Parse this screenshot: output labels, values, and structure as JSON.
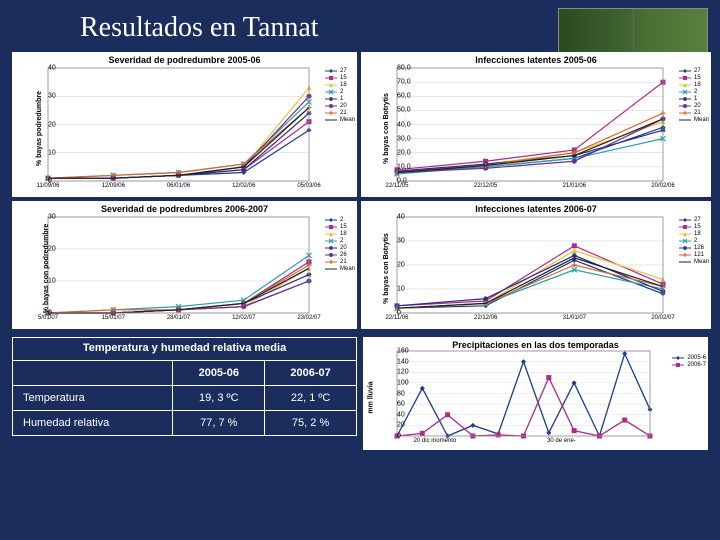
{
  "title": "Resultados en Tannat",
  "charts": {
    "sev0506": {
      "title": "Severidad de podredumbre 2005-06",
      "ylabel": "% bayas podredumbre",
      "ylim": [
        0,
        40
      ],
      "ytick": 10,
      "xticks": [
        "11/09/06",
        "12/09/06",
        "06/01/06",
        "12/02/06",
        "05/03/06"
      ],
      "legend": [
        "27",
        "15",
        "18",
        "2",
        "1",
        "20",
        "21",
        "Mean"
      ],
      "colors": [
        "#1a3c8c",
        "#b02a8a",
        "#e8c040",
        "#2aa0b0",
        "#2a2a80",
        "#6a3090",
        "#d06a30",
        "#202020"
      ],
      "markers": [
        "diamond",
        "square",
        "triangle",
        "cross",
        "star",
        "circle",
        "plus",
        "line"
      ],
      "series": [
        [
          1,
          1,
          2,
          3,
          18
        ],
        [
          1,
          1,
          2,
          4,
          21
        ],
        [
          1,
          1,
          2,
          5,
          33
        ],
        [
          1,
          2,
          3,
          6,
          28
        ],
        [
          1,
          1,
          2,
          4,
          24
        ],
        [
          1,
          1,
          2,
          5,
          30
        ],
        [
          1,
          2,
          3,
          6,
          26
        ],
        [
          1,
          1,
          2,
          5,
          26
        ]
      ]
    },
    "inf0506": {
      "title": "Infecciones latentes 2005-06",
      "ylabel": "% bayas con Botrytis",
      "ylim": [
        0,
        80
      ],
      "ytick": 10,
      "xticks": [
        "22/11/05",
        "22/12/05",
        "21/01/06",
        "20/02/06"
      ],
      "legend": [
        "27",
        "15",
        "18",
        "2",
        "1",
        "20",
        "21",
        "Mean"
      ],
      "colors": [
        "#1a3c8c",
        "#b02a8a",
        "#e8c040",
        "#2aa0b0",
        "#2a2a80",
        "#6a3090",
        "#d06a30",
        "#202020"
      ],
      "markers": [
        "diamond",
        "square",
        "triangle",
        "cross",
        "star",
        "circle",
        "plus",
        "line"
      ],
      "series": [
        [
          6,
          10,
          16,
          38
        ],
        [
          8,
          14,
          22,
          70
        ],
        [
          6,
          12,
          20,
          42
        ],
        [
          5,
          10,
          16,
          30
        ],
        [
          7,
          12,
          18,
          36
        ],
        [
          6,
          9,
          14,
          44
        ],
        [
          6,
          11,
          20,
          48
        ],
        [
          6,
          11,
          18,
          44
        ]
      ]
    },
    "sev0607": {
      "title": "Severidad de podredumbres 2006-2007",
      "ylabel": "% bayas con podredumbre",
      "ylim": [
        0,
        30
      ],
      "ytick": 10,
      "xticks": [
        "5/01/07",
        "15/01/07",
        "28/01/07",
        "12/02/07",
        "23/02/07"
      ],
      "legend": [
        "2",
        "15",
        "18",
        "2",
        "20",
        "26",
        "21",
        "Mean"
      ],
      "colors": [
        "#1a3c8c",
        "#b02a8a",
        "#e8c040",
        "#2aa0b0",
        "#2a2a80",
        "#6a3090",
        "#d06a30",
        "#202020"
      ],
      "markers": [
        "diamond",
        "square",
        "triangle",
        "cross",
        "star",
        "circle",
        "plus",
        "line"
      ],
      "series": [
        [
          0,
          0,
          1,
          2,
          10
        ],
        [
          0,
          0,
          1,
          3,
          16
        ],
        [
          0,
          0,
          1,
          2,
          14
        ],
        [
          0,
          1,
          2,
          4,
          18
        ],
        [
          0,
          0,
          1,
          3,
          12
        ],
        [
          0,
          0,
          1,
          2,
          10
        ],
        [
          0,
          1,
          1,
          3,
          15
        ],
        [
          0,
          0,
          1,
          3,
          14
        ]
      ]
    },
    "inf0607": {
      "title": "Infecciones latentes 2006-07",
      "ylabel": "% bayas con Botrytis",
      "ylim": [
        0,
        40
      ],
      "ytick": 10,
      "xticks": [
        "22/11/06",
        "22/12/06",
        "31/01/07",
        "20/02/07"
      ],
      "legend": [
        "27",
        "15",
        "18",
        "2",
        "126",
        "121",
        "Mean"
      ],
      "colors": [
        "#1a3c8c",
        "#b02a8a",
        "#e8c040",
        "#2aa0b0",
        "#2a2a80",
        "#d06a30",
        "#202020"
      ],
      "markers": [
        "diamond",
        "square",
        "triangle",
        "cross",
        "star",
        "plus",
        "line"
      ],
      "series": [
        [
          2,
          3,
          22,
          8
        ],
        [
          3,
          5,
          28,
          12
        ],
        [
          2,
          4,
          26,
          14
        ],
        [
          2,
          4,
          18,
          10
        ],
        [
          3,
          6,
          24,
          9
        ],
        [
          2,
          4,
          20,
          11
        ],
        [
          2,
          4,
          23,
          11
        ]
      ]
    },
    "precip": {
      "title": "Precipitaciones en las dos temporadas",
      "ylabel": "mm lluvia",
      "ylim": [
        0,
        160
      ],
      "ytick": 20,
      "xticks": [
        "20 dic momento",
        "30 de ene-"
      ],
      "legend": [
        "2005-6",
        "2006-7"
      ],
      "colors": [
        "#1a3c8c",
        "#b02a8a"
      ],
      "series": [
        [
          0,
          90,
          0,
          20,
          4,
          140,
          6,
          100,
          0,
          155,
          50
        ],
        [
          0,
          5,
          40,
          0,
          2,
          0,
          110,
          10,
          0,
          30,
          0
        ]
      ]
    }
  },
  "table": {
    "caption": "Temperatura y humedad relativa media",
    "headers": [
      "",
      "2005-06",
      "2006-07"
    ],
    "rows": [
      [
        "Temperatura",
        "19, 3 ºC",
        "22, 1 ºC"
      ],
      [
        "Humedad relativa",
        "77, 7 %",
        "75, 2 %"
      ]
    ]
  }
}
